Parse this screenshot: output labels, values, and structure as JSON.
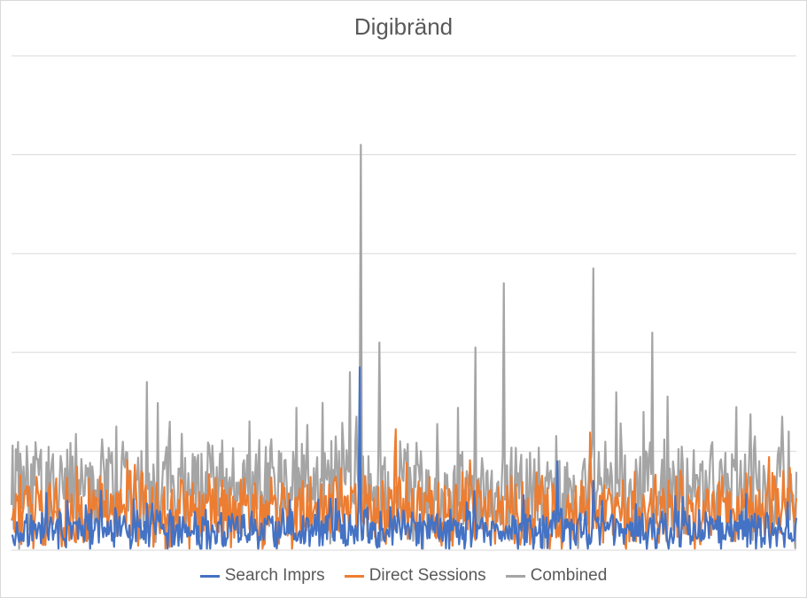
{
  "chart_data": {
    "type": "line",
    "title": "Digibränd",
    "xlabel": "",
    "ylabel": "",
    "grid": true,
    "legend_position": "bottom",
    "ylim": [
      0,
      100
    ],
    "y_gridlines": [
      0,
      20,
      40,
      60,
      80,
      100
    ],
    "n_points": 720,
    "series": [
      {
        "name": "Search Imprs",
        "color": "#4472c4",
        "base": 4,
        "noise": 3.5,
        "spikes": [
          [
            319,
            37
          ],
          [
            500,
            18
          ],
          [
            533,
            14
          ],
          [
            541,
            10
          ],
          [
            534,
            8
          ]
        ]
      },
      {
        "name": "Direct Sessions",
        "color": "#ed7d31",
        "base": 8,
        "noise": 6.5,
        "spikes": [
          [
            320,
            17
          ],
          [
            324,
            15
          ],
          [
            385,
            12
          ],
          [
            545,
            10
          ],
          [
            590,
            13
          ],
          [
            700,
            13
          ],
          [
            700,
            11
          ]
        ]
      },
      {
        "name": "Combined",
        "color": "#a5a5a5",
        "base": 12,
        "noise": 9,
        "spikes": [
          [
            320,
            82
          ],
          [
            124,
            34
          ],
          [
            96,
            25
          ],
          [
            316,
            27
          ],
          [
            337,
            42
          ],
          [
            310,
            36
          ],
          [
            425,
            41
          ],
          [
            451,
            54
          ],
          [
            533,
            57
          ],
          [
            587,
            44
          ],
          [
            706,
            27
          ],
          [
            712,
            24
          ]
        ]
      }
    ]
  }
}
